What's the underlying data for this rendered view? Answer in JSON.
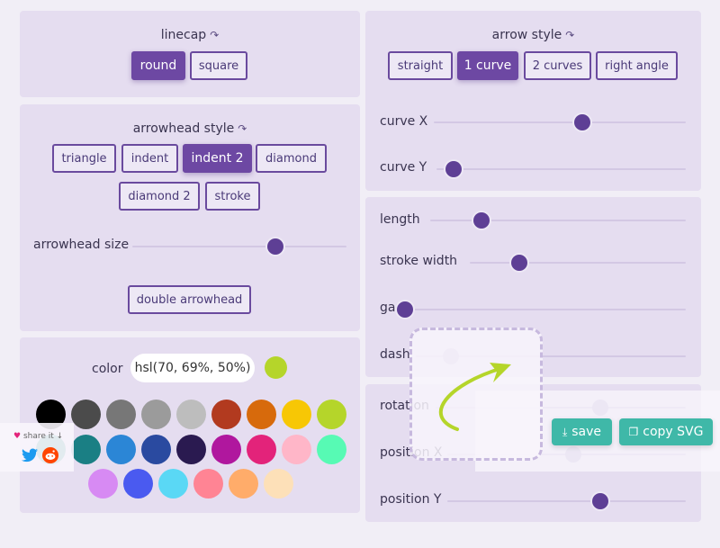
{
  "linecap": {
    "title": "linecap",
    "options": [
      "round",
      "square"
    ],
    "selected": "round"
  },
  "arrowhead": {
    "title": "arrowhead style",
    "options": [
      "triangle",
      "indent",
      "indent 2",
      "diamond",
      "diamond 2",
      "stroke"
    ],
    "selected": "indent 2",
    "size_label": "arrowhead size",
    "size_value": 0.67,
    "double_label": "double arrowhead"
  },
  "color": {
    "label": "color",
    "value": "hsl(70, 69%, 50%)",
    "current": "#b5d52a",
    "swatches": [
      "#000000",
      "#4b4b4b",
      "#777777",
      "#9b9b9b",
      "#bdbdbd",
      "#b23a1f",
      "#d76a0c",
      "#f7c705",
      "#b5d52a",
      "#1a8c7a",
      "#1a7f84",
      "#2b86d6",
      "#2a4aa0",
      "#2a1a50",
      "#b0179e",
      "#e3237a",
      "#ffb6c8",
      "#57fab4",
      "#d78af3",
      "#4a5af0",
      "#5ad8f5",
      "#ff8494",
      "#ffac6a",
      "#fde0b8"
    ]
  },
  "arrow_style": {
    "title": "arrow style",
    "options": [
      "straight",
      "1 curve",
      "2 curves",
      "right angle"
    ],
    "selected": "1 curve"
  },
  "sliders": {
    "curve_x": {
      "label": "curve X",
      "value": 0.59
    },
    "curve_y": {
      "label": "curve Y",
      "value": 0.07
    },
    "length": {
      "label": "length",
      "value": 0.2
    },
    "stroke_width": {
      "label": "stroke width",
      "value": 0.23
    },
    "gap": {
      "label": "gap",
      "value": 0.0
    },
    "dash": {
      "label": "dash",
      "value": 0.13
    },
    "rotation": {
      "label": "rotation",
      "value": 0.66
    },
    "position_x": {
      "label": "position X",
      "value": 0.53
    },
    "position_y": {
      "label": "position Y",
      "value": 0.64
    }
  },
  "actions": {
    "save": "save",
    "copy": "copy SVG"
  },
  "share": {
    "label": "share it",
    "accent": "#3fb8a8"
  },
  "icons": {
    "rotate": "↷",
    "heart": "♥",
    "arrow_down": "↓",
    "download": "⤓",
    "clipboard": "❐"
  }
}
